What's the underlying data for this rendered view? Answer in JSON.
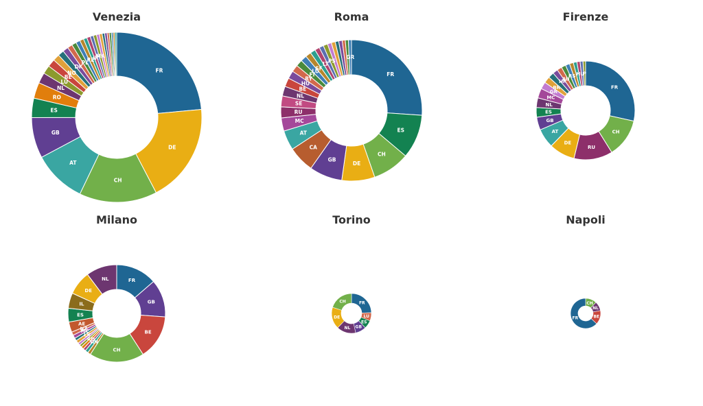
{
  "colors": {
    "FR": "#1f6693",
    "DE": "#e9ae14",
    "CH": "#72b04a",
    "AT": "#3aa6a2",
    "GB": "#603f92",
    "ES": "#138251",
    "RO": "#e17e0c",
    "NL": "#6d3670",
    "BE": "#c9463d",
    "RU": "#8d2f6a",
    "MC": "#a4489a",
    "CA": "#b75d2f",
    "SE": "#c14a82",
    "IL": "#8b6c1c",
    "AE": "#c2592f",
    "other": [
      "#7a4b9c",
      "#d2694c",
      "#4a8a3c",
      "#3f7fb5",
      "#b7862c",
      "#2d9f8f",
      "#b0446e",
      "#5b6fb0",
      "#8c9a2d",
      "#c27bd0",
      "#e0a13a",
      "#26707a"
    ]
  },
  "chart_data": [
    {
      "type": "pie",
      "title": "Venezia",
      "slices": [
        {
          "label": "FR",
          "value": 35
        },
        {
          "label": "DE",
          "value": 28
        },
        {
          "label": "CH",
          "value": 22
        },
        {
          "label": "AT",
          "value": 15
        },
        {
          "label": "GB",
          "value": 11.5
        },
        {
          "label": "ES",
          "value": 5.5
        },
        {
          "label": "RO",
          "value": 4.5
        },
        {
          "label": "NL",
          "value": 3
        },
        {
          "label": "LU",
          "value": 2.4
        },
        {
          "label": "BE",
          "value": 2.2
        },
        {
          "label": "NO",
          "value": 1.9
        },
        {
          "label": "",
          "value": 1.7
        },
        {
          "label": "DK",
          "value": 1.6
        },
        {
          "label": "",
          "value": 1.4
        },
        {
          "label": "PL",
          "value": 1.3
        },
        {
          "label": "",
          "value": 1.2
        },
        {
          "label": "RE",
          "value": 1.1
        },
        {
          "label": "",
          "value": 1
        },
        {
          "label": "IR",
          "value": 1
        },
        {
          "label": "",
          "value": 0.9
        },
        {
          "label": "MA",
          "value": 0.9
        },
        {
          "label": "",
          "value": 0.8
        },
        {
          "label": "",
          "value": 0.8
        },
        {
          "label": "",
          "value": 0.7
        },
        {
          "label": "",
          "value": 0.7
        },
        {
          "label": "",
          "value": 0.6
        },
        {
          "label": "",
          "value": 0.6
        },
        {
          "label": "",
          "value": 0.5
        },
        {
          "label": "",
          "value": 0.5
        },
        {
          "label": "",
          "value": 0.5
        }
      ]
    },
    {
      "type": "pie",
      "title": "Roma",
      "slices": [
        {
          "label": "FR",
          "value": 26
        },
        {
          "label": "ES",
          "value": 10
        },
        {
          "label": "CH",
          "value": 8.5
        },
        {
          "label": "DE",
          "value": 7.5
        },
        {
          "label": "GB",
          "value": 7.5
        },
        {
          "label": "CA",
          "value": 6
        },
        {
          "label": "AT",
          "value": 4.5
        },
        {
          "label": "MC",
          "value": 3
        },
        {
          "label": "RU",
          "value": 2.5
        },
        {
          "label": "SE",
          "value": 2.5
        },
        {
          "label": "NL",
          "value": 2.2
        },
        {
          "label": "BE",
          "value": 2
        },
        {
          "label": "HU",
          "value": 1.8
        },
        {
          "label": "RY",
          "value": 1.6
        },
        {
          "label": "FI",
          "value": 1.5
        },
        {
          "label": "LU",
          "value": 1.4
        },
        {
          "label": "SF",
          "value": 1.3
        },
        {
          "label": "",
          "value": 1.2
        },
        {
          "label": "LT",
          "value": 1.1
        },
        {
          "label": "",
          "value": 1
        },
        {
          "label": "PS",
          "value": 1
        },
        {
          "label": "",
          "value": 0.9
        },
        {
          "label": "",
          "value": 0.9
        },
        {
          "label": "",
          "value": 0.8
        },
        {
          "label": "",
          "value": 0.8
        },
        {
          "label": "",
          "value": 0.7
        },
        {
          "label": "",
          "value": 0.7
        },
        {
          "label": "GR",
          "value": 0.7
        }
      ]
    },
    {
      "type": "pie",
      "title": "Firenze",
      "slices": [
        {
          "label": "FR",
          "value": 27
        },
        {
          "label": "CH",
          "value": 12
        },
        {
          "label": "RU",
          "value": 12
        },
        {
          "label": "DE",
          "value": 8
        },
        {
          "label": "AT",
          "value": 6
        },
        {
          "label": "GB",
          "value": 4
        },
        {
          "label": "ES",
          "value": 3
        },
        {
          "label": "NL",
          "value": 3
        },
        {
          "label": "MC",
          "value": 3
        },
        {
          "label": "GR",
          "value": 2.2
        },
        {
          "label": "BR",
          "value": 2
        },
        {
          "label": "",
          "value": 1.8
        },
        {
          "label": "HR",
          "value": 1.6
        },
        {
          "label": "AU",
          "value": 1.5
        },
        {
          "label": "",
          "value": 1.4
        },
        {
          "label": "RS",
          "value": 1.3
        },
        {
          "label": "",
          "value": 1.2
        },
        {
          "label": "",
          "value": 1.1
        },
        {
          "label": "HU",
          "value": 1
        },
        {
          "label": "",
          "value": 0.9
        },
        {
          "label": "P",
          "value": 0.8
        }
      ]
    },
    {
      "type": "pie",
      "title": "Milano",
      "slices": [
        {
          "label": "FR",
          "value": 12
        },
        {
          "label": "GB",
          "value": 11
        },
        {
          "label": "BE",
          "value": 13
        },
        {
          "label": "CH",
          "value": 16
        },
        {
          "label": "",
          "value": 0.9
        },
        {
          "label": "HN",
          "value": 0.9
        },
        {
          "label": "",
          "value": 0.8
        },
        {
          "label": "RO",
          "value": 0.8
        },
        {
          "label": "",
          "value": 0.7
        },
        {
          "label": "",
          "value": 0.7
        },
        {
          "label": "LK",
          "value": 0.9
        },
        {
          "label": "",
          "value": 0.8
        },
        {
          "label": "MC",
          "value": 1
        },
        {
          "label": "NZ",
          "value": 1
        },
        {
          "label": "AE",
          "value": 3
        },
        {
          "label": "ES",
          "value": 4
        },
        {
          "label": "IL",
          "value": 4.5
        },
        {
          "label": "DE",
          "value": 7
        },
        {
          "label": "NL",
          "value": 9
        }
      ]
    },
    {
      "type": "pie",
      "title": "Torino",
      "slices": [
        {
          "label": "FR",
          "value": 22
        },
        {
          "label": "LU",
          "value": 6
        },
        {
          "label": "ES",
          "value": 6
        },
        {
          "label": "GB",
          "value": 8
        },
        {
          "label": "NL",
          "value": 14
        },
        {
          "label": "DE",
          "value": 16
        },
        {
          "label": "CH",
          "value": 18
        }
      ]
    },
    {
      "type": "pie",
      "title": "Napoli",
      "slices": [
        {
          "label": "CH",
          "value": 12
        },
        {
          "label": "NL",
          "value": 10
        },
        {
          "label": "BE",
          "value": 15
        },
        {
          "label": "FR",
          "value": 63
        }
      ]
    }
  ]
}
